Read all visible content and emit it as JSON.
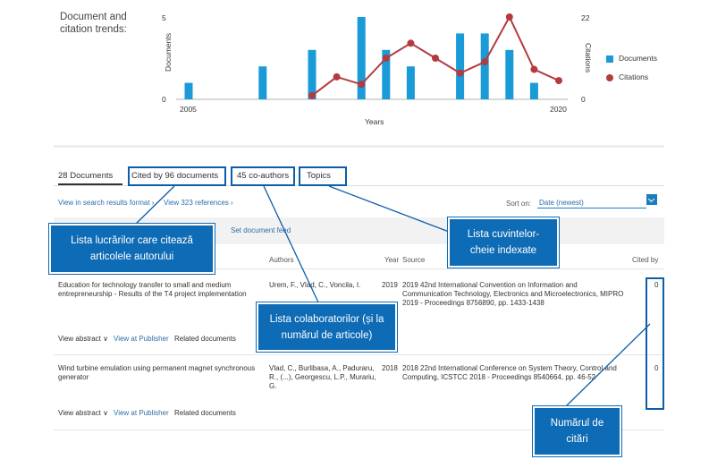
{
  "trends": {
    "title": "Document and citation trends:",
    "legend": {
      "documents": "Documents",
      "citations": "Citations"
    },
    "colors": {
      "documents": "#1a9bd7",
      "citations": "#b53a3f"
    }
  },
  "chart_data": {
    "type": "bar",
    "xlabel": "Years",
    "ylabel": "Documents",
    "y2label": "Citations",
    "x_tick_labels": [
      "2005",
      "2020"
    ],
    "y_ticks": [
      "5",
      "0"
    ],
    "y2_ticks": [
      "22",
      "0"
    ],
    "ylim": [
      0,
      5
    ],
    "y2lim": [
      0,
      22
    ],
    "x": [
      2005,
      2006,
      2007,
      2008,
      2009,
      2010,
      2011,
      2012,
      2013,
      2014,
      2015,
      2016,
      2017,
      2018,
      2019,
      2020
    ],
    "series": [
      {
        "name": "Documents",
        "type": "bar",
        "values": [
          1,
          0,
          0,
          2,
          0,
          3,
          0,
          5,
          3,
          2,
          0,
          4,
          4,
          3,
          1,
          0
        ]
      },
      {
        "name": "Citations",
        "type": "line",
        "x": [
          2010,
          2011,
          2012,
          2013,
          2014,
          2015,
          2016,
          2017,
          2018,
          2019,
          2020
        ],
        "values": [
          1,
          6,
          4,
          11,
          15,
          11,
          7,
          10,
          22,
          8,
          5
        ]
      }
    ],
    "legend_position": "right"
  },
  "tabs": {
    "documents": "28 Documents",
    "cited_by": "Cited by 96 documents",
    "coauthors": "45 co-authors",
    "topics": "Topics"
  },
  "links": {
    "view_search": "View in search results format ›",
    "view_refs": "View 323 references ›",
    "set_feed": "Set document feed"
  },
  "sort": {
    "label": "Sort on:",
    "value": "Date (newest)"
  },
  "table": {
    "headers": {
      "authors": "Authors",
      "year": "Year",
      "source": "Source",
      "cited_by": "Cited by"
    },
    "rows": [
      {
        "title": "Education for technology transfer to small and medium entrepreneurship - Results of the T4 project implementation",
        "authors": "Urem, F., Vlad, C., Voncila, I.",
        "year": "2019",
        "source": "2019 42nd International Convention on Information and Communication Technology, Electronics and Microelectronics, MIPRO 2019 - Proceedings 8756890, pp. 1433-1438",
        "cited": "0",
        "actions": {
          "abstract": "View abstract ∨",
          "publisher": "View at Publisher",
          "related": "Related documents"
        }
      },
      {
        "title": "Wind turbine emulation using permanent magnet synchronous generator",
        "authors": "Vlad, C., Burlibasa, A., Paduraru, R., (...), Georgescu, L.P., Murariu, G.",
        "year": "2018",
        "source": "2018 22nd International Conference on System Theory, Control and Computing, ICSTCC 2018 - Proceedings 8540664, pp. 46-52",
        "cited": "0",
        "actions": {
          "abstract": "View abstract ∨",
          "publisher": "View at Publisher",
          "related": "Related documents"
        }
      }
    ]
  },
  "callouts": {
    "cited_by": "Lista lucrărilor care citează articolele autorului",
    "coauthors": "Lista colaboratorilor (și la numărul de articole)",
    "topics": "Lista cuvintelor-cheie indexate",
    "citations": "Numărul de citări"
  }
}
